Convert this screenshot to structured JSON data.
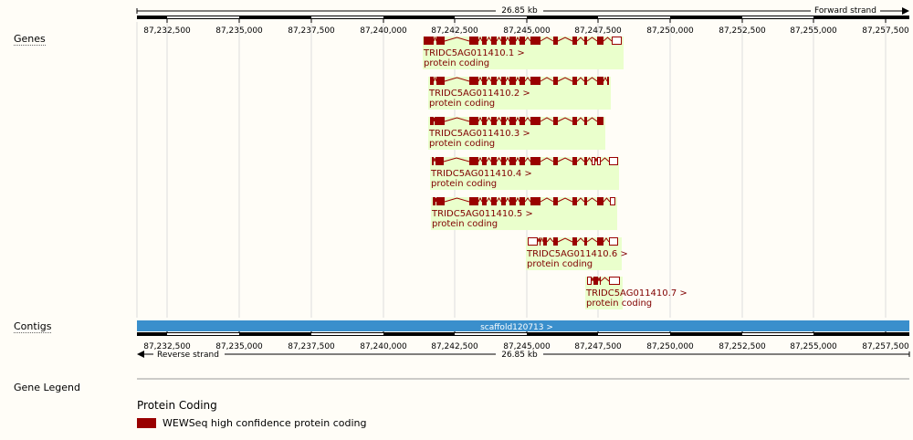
{
  "ruler_top": {
    "length_label": "26.85 kb",
    "strand_label": "Forward strand",
    "ticks": [
      "87,232,500",
      "87,235,000",
      "87,237,500",
      "87,240,000",
      "87,242,500",
      "87,245,000",
      "87,247,500",
      "87,250,000",
      "87,252,500",
      "87,255,000",
      "87,257,500"
    ]
  },
  "ruler_bottom": {
    "length_label": "26.85 kb",
    "strand_label": "Reverse strand",
    "ticks": [
      "87,232,500",
      "87,235,000",
      "87,237,500",
      "87,240,000",
      "87,242,500",
      "87,245,000",
      "87,247,500",
      "87,250,000",
      "87,252,500",
      "87,255,000",
      "87,257,500"
    ]
  },
  "tracks": {
    "genes_label": "Genes",
    "contigs_label": "Contigs"
  },
  "contig": {
    "label": "scaffold120713 >",
    "color": "#3a8fcc"
  },
  "colors": {
    "exon": "#990000",
    "label_bg": "#eaffcc",
    "gene_text": "#800000"
  },
  "transcripts": [
    {
      "name": "TRIDC5AG011410.1 >",
      "biotype": "protein coding"
    },
    {
      "name": "TRIDC5AG011410.2 >",
      "biotype": "protein coding"
    },
    {
      "name": "TRIDC5AG011410.3 >",
      "biotype": "protein coding"
    },
    {
      "name": "TRIDC5AG011410.4 >",
      "biotype": "protein coding"
    },
    {
      "name": "TRIDC5AG011410.5 >",
      "biotype": "protein coding"
    },
    {
      "name": "TRIDC5AG011410.6 >",
      "biotype": "protein coding"
    },
    {
      "name": "TRIDC5AG011410.7 >",
      "biotype": "protein coding"
    }
  ],
  "legend": {
    "title": "Gene Legend",
    "heading": "Protein Coding",
    "item": "WEWSeq high confidence protein coding"
  }
}
